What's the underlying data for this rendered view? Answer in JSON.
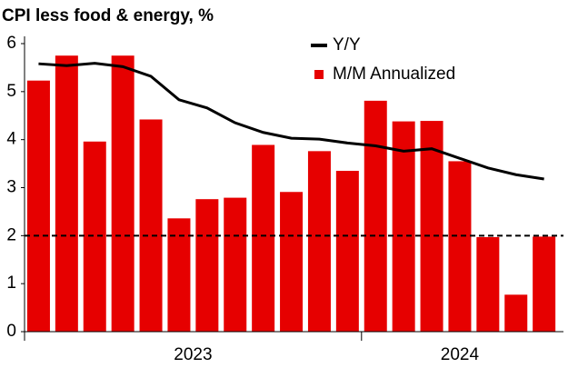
{
  "chart_data": {
    "type": "bar",
    "title": "CPI less food & energy, %",
    "categories": [
      null,
      null,
      null,
      null,
      null,
      null,
      null,
      null,
      null,
      null,
      null,
      null,
      null,
      null,
      null,
      null,
      null,
      null,
      null
    ],
    "x_group_labels": [
      "2023",
      "2024"
    ],
    "series": [
      {
        "name": "Y/Y",
        "type": "line",
        "color": "#000000",
        "values": [
          5.58,
          5.54,
          5.59,
          5.52,
          5.32,
          4.83,
          4.66,
          4.35,
          4.15,
          4.03,
          4.01,
          3.93,
          3.87,
          3.76,
          3.81,
          3.61,
          3.41,
          3.27,
          3.18
        ]
      },
      {
        "name": "M/M Annualized",
        "type": "bar",
        "color": "#e60000",
        "values": [
          5.23,
          5.75,
          3.96,
          5.75,
          4.42,
          2.36,
          2.76,
          2.79,
          3.89,
          2.91,
          3.76,
          3.35,
          4.81,
          4.38,
          4.39,
          3.55,
          1.97,
          0.77,
          1.98
        ]
      }
    ],
    "reference_line": 2,
    "ylim": [
      0,
      6
    ],
    "yticks": [
      0,
      1,
      2,
      3,
      4,
      5,
      6
    ],
    "grid": false,
    "legend": "top-right"
  }
}
